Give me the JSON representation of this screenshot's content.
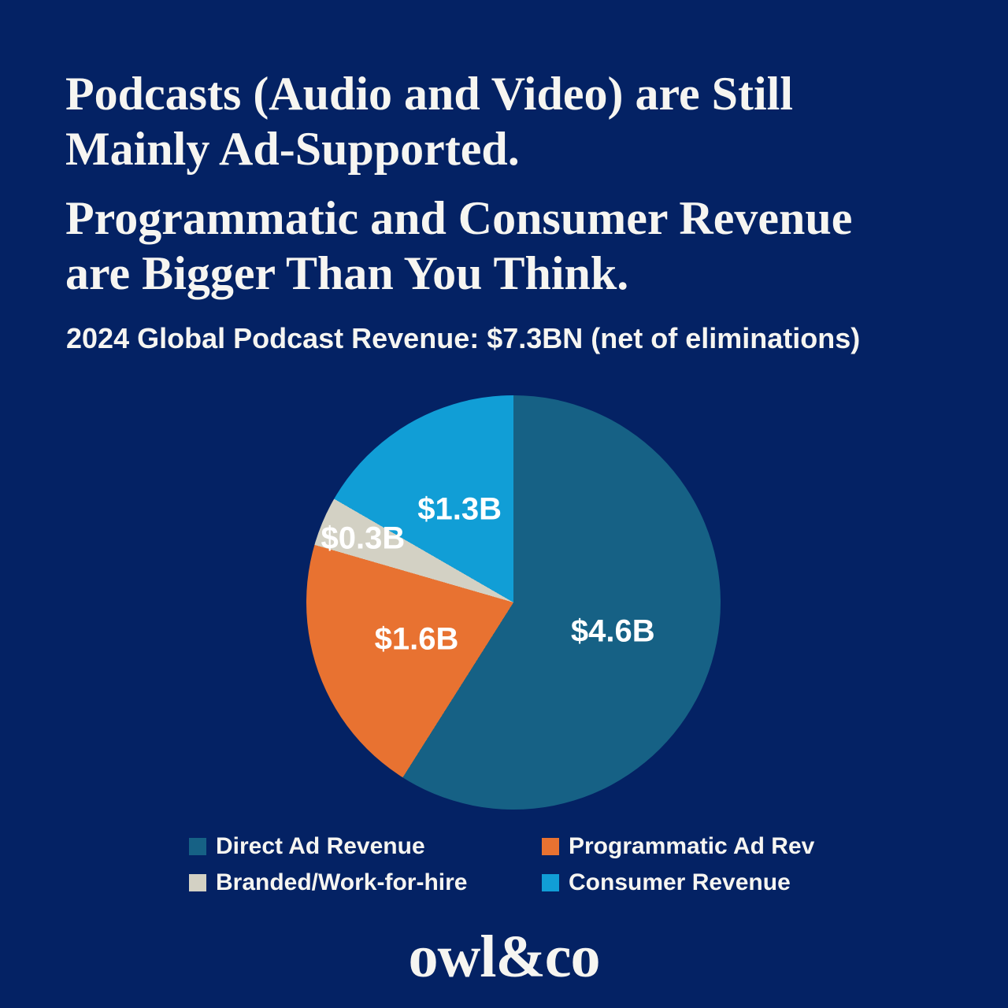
{
  "page": {
    "background_color": "#042264",
    "text_color": "#f6f5f1"
  },
  "header": {
    "title_block_1": {
      "line_1": "Podcasts (Audio and Video) are Still",
      "line_2": "Mainly Ad-Supported."
    },
    "title_block_2": {
      "line_1": "Programmatic and Consumer Revenue",
      "line_2": "are Bigger Than You Think."
    },
    "subtitle": "2024 Global Podcast Revenue: $7.3BN (net of eliminations)"
  },
  "chart_data": {
    "type": "pie",
    "title": "2024 Global Podcast Revenue: $7.3BN (net of eliminations)",
    "total_display": "$7.3BN",
    "start_angle_deg": 0,
    "direction": "clockwise",
    "legend_position": "bottom",
    "slices": [
      {
        "label": "Direct Ad Revenue",
        "value": 4.6,
        "display": "$4.6B",
        "color": "#166185"
      },
      {
        "label": "Programmatic Ad Rev",
        "value": 1.6,
        "display": "$1.6B",
        "color": "#e87231"
      },
      {
        "label": "Branded/Work-for-hire",
        "value": 0.3,
        "display": "$0.3B",
        "color": "#d3d1c4"
      },
      {
        "label": "Consumer Revenue",
        "value": 1.3,
        "display": "$1.3B",
        "color": "#119ed6"
      }
    ],
    "label_radius_fractions": [
      0.5,
      0.5,
      0.79,
      0.52
    ],
    "value_label_color": "#ffffff"
  },
  "footer": {
    "brand": "owl&co"
  }
}
